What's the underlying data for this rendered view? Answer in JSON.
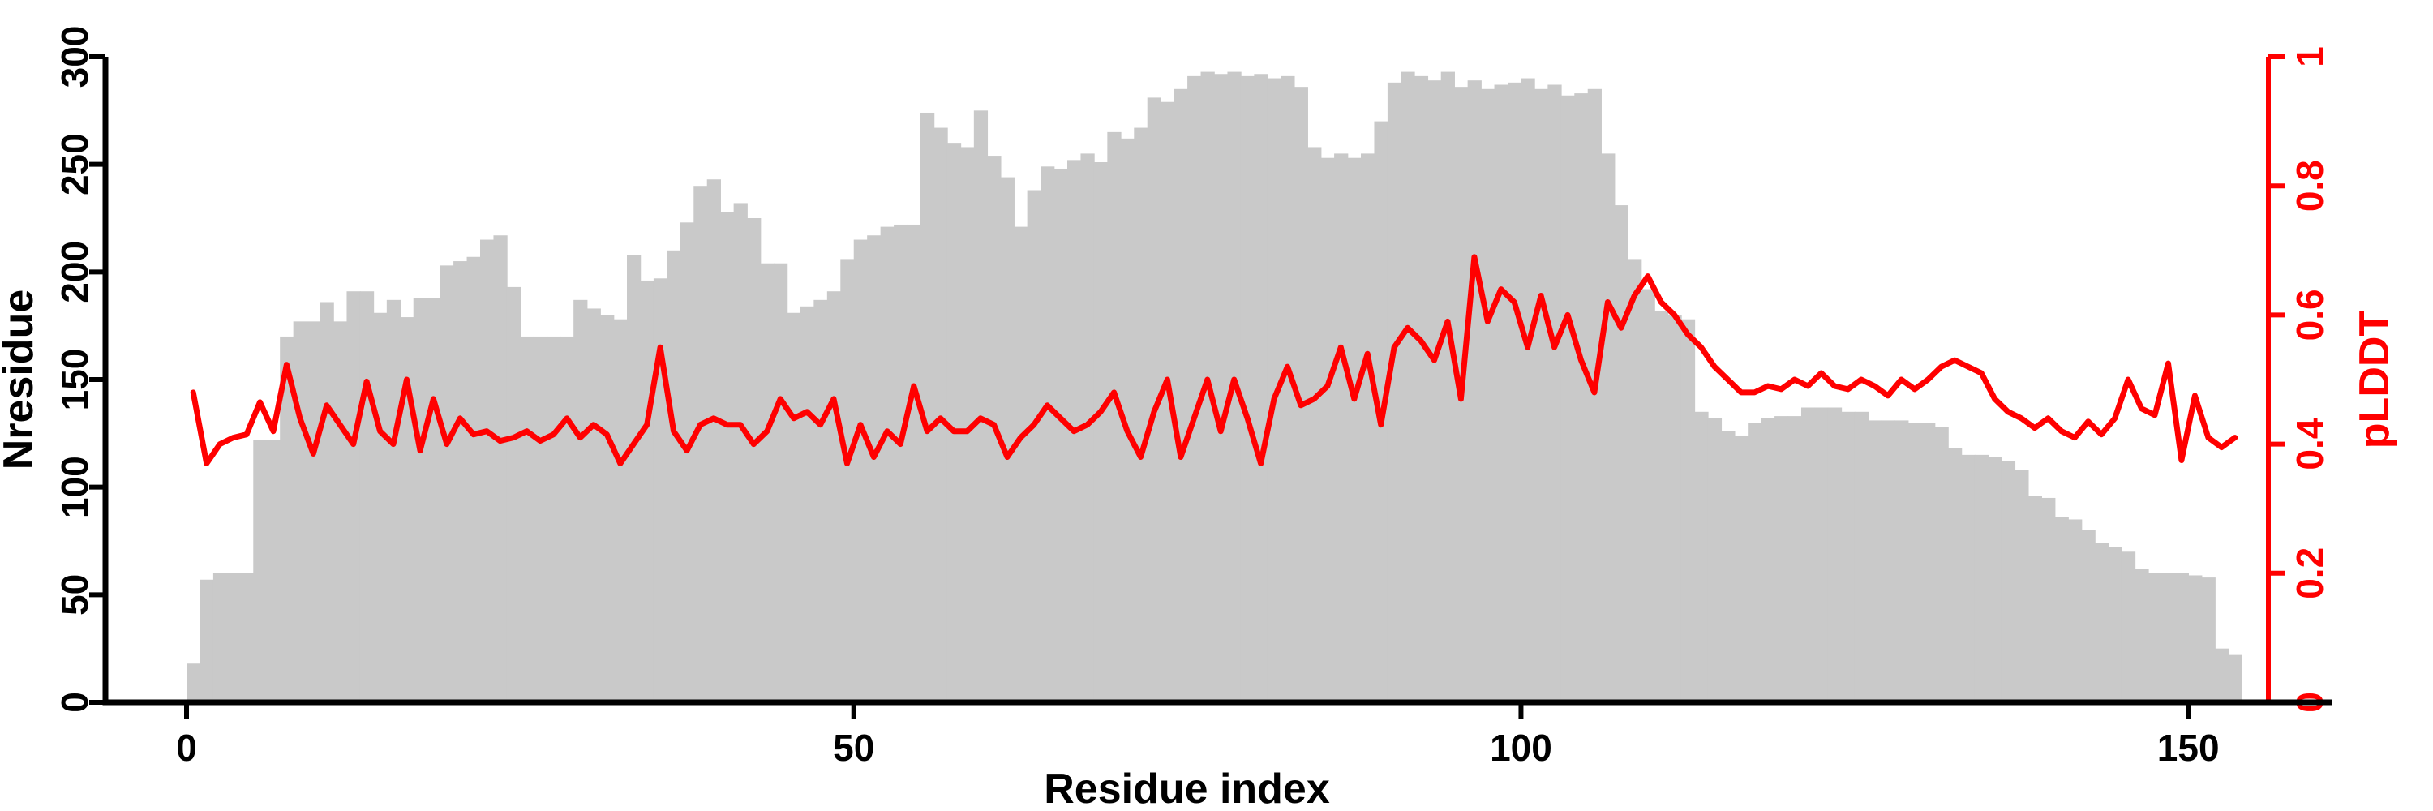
{
  "figure": {
    "background": "#ffffff",
    "colors": {
      "bars": "#c9c9c9",
      "line": "#ff0000",
      "axis": "#000000"
    }
  },
  "chart_data": {
    "type": "bar",
    "overlay": "line",
    "title": "",
    "xlabel": "Residue index",
    "grid": false,
    "legend_position": "none",
    "x_ticks": [
      0,
      50,
      100,
      150
    ],
    "x_range": [
      0,
      160
    ],
    "left_axis": {
      "label": "Nresidue",
      "ticks": [
        0,
        50,
        100,
        150,
        200,
        250,
        300
      ],
      "range": [
        0,
        300
      ],
      "color": "#000000"
    },
    "right_axis": {
      "label": "pLDDT",
      "ticks": [
        0,
        0.2,
        0.4,
        0.6,
        0.8,
        1
      ],
      "range": [
        0,
        1
      ],
      "color": "#ff0000"
    },
    "x": [
      1,
      2,
      3,
      4,
      5,
      6,
      7,
      8,
      9,
      10,
      11,
      12,
      13,
      14,
      15,
      16,
      17,
      18,
      19,
      20,
      21,
      22,
      23,
      24,
      25,
      26,
      27,
      28,
      29,
      30,
      31,
      32,
      33,
      34,
      35,
      36,
      37,
      38,
      39,
      40,
      41,
      42,
      43,
      44,
      45,
      46,
      47,
      48,
      49,
      50,
      51,
      52,
      53,
      54,
      55,
      56,
      57,
      58,
      59,
      60,
      61,
      62,
      63,
      64,
      65,
      66,
      67,
      68,
      69,
      70,
      71,
      72,
      73,
      74,
      75,
      76,
      77,
      78,
      79,
      80,
      81,
      82,
      83,
      84,
      85,
      86,
      87,
      88,
      89,
      90,
      91,
      92,
      93,
      94,
      95,
      96,
      97,
      98,
      99,
      100,
      101,
      102,
      103,
      104,
      105,
      106,
      107,
      108,
      109,
      110,
      111,
      112,
      113,
      114,
      115,
      116,
      117,
      118,
      119,
      120,
      121,
      122,
      123,
      124,
      125,
      126,
      127,
      128,
      129,
      130,
      131,
      132,
      133,
      134,
      135,
      136,
      137,
      138,
      139,
      140,
      141,
      142,
      143,
      144,
      145,
      146,
      147,
      148,
      149,
      150,
      151,
      152,
      153,
      154
    ],
    "series": [
      {
        "name": "Nresidue",
        "type": "bar",
        "axis": "left",
        "color": "#c9c9c9",
        "values": [
          18,
          57,
          60,
          60,
          60,
          122,
          122,
          170,
          177,
          177,
          186,
          177,
          191,
          191,
          181,
          187,
          179,
          188,
          188,
          203,
          205,
          207,
          215,
          217,
          193,
          170,
          170,
          170,
          170,
          187,
          183,
          180,
          178,
          208,
          196,
          197,
          210,
          223,
          240,
          243,
          228,
          232,
          225,
          204,
          204,
          181,
          184,
          187,
          191,
          206,
          215,
          217,
          221,
          222,
          222,
          274,
          267,
          260,
          258,
          275,
          254,
          244,
          221,
          238,
          249,
          248,
          252,
          255,
          251,
          265,
          262,
          267,
          281,
          279,
          285,
          291,
          293,
          292,
          293,
          291,
          292,
          290,
          291,
          286,
          258,
          253,
          255,
          253,
          255,
          270,
          288,
          293,
          291,
          289,
          293,
          286,
          289,
          285,
          287,
          288,
          290,
          285,
          287,
          282,
          283,
          285,
          255,
          231,
          206,
          192,
          182,
          180,
          178,
          135,
          132,
          126,
          124,
          130,
          132,
          133,
          133,
          137,
          137,
          137,
          135,
          135,
          131,
          131,
          131,
          130,
          130,
          128,
          118,
          115,
          115,
          114,
          112,
          108,
          96,
          95,
          86,
          85,
          80,
          74,
          72,
          70,
          62,
          60,
          60,
          60,
          59,
          58,
          25,
          22
        ]
      },
      {
        "name": "pLDDT",
        "type": "line",
        "axis": "right",
        "color": "#ff0000",
        "values": [
          0.48,
          0.37,
          0.4,
          0.41,
          0.415,
          0.465,
          0.42,
          0.523,
          0.44,
          0.385,
          0.46,
          0.43,
          0.4,
          0.497,
          0.42,
          0.4,
          0.5,
          0.39,
          0.47,
          0.4,
          0.44,
          0.415,
          0.42,
          0.405,
          0.41,
          0.42,
          0.405,
          0.415,
          0.44,
          0.41,
          0.43,
          0.415,
          0.37,
          0.4,
          0.43,
          0.55,
          0.42,
          0.39,
          0.43,
          0.44,
          0.43,
          0.43,
          0.4,
          0.42,
          0.47,
          0.44,
          0.45,
          0.43,
          0.47,
          0.37,
          0.43,
          0.38,
          0.42,
          0.4,
          0.49,
          0.42,
          0.44,
          0.42,
          0.42,
          0.44,
          0.43,
          0.38,
          0.41,
          0.43,
          0.46,
          0.44,
          0.42,
          0.43,
          0.45,
          0.48,
          0.42,
          0.38,
          0.45,
          0.5,
          0.38,
          0.44,
          0.5,
          0.42,
          0.5,
          0.44,
          0.37,
          0.47,
          0.52,
          0.46,
          0.47,
          0.49,
          0.55,
          0.47,
          0.54,
          0.43,
          0.55,
          0.58,
          0.56,
          0.53,
          0.59,
          0.47,
          0.69,
          0.59,
          0.64,
          0.62,
          0.55,
          0.63,
          0.55,
          0.6,
          0.53,
          0.48,
          0.62,
          0.58,
          0.63,
          0.66,
          0.62,
          0.6,
          0.57,
          0.55,
          0.52,
          0.5,
          0.48,
          0.48,
          0.49,
          0.485,
          0.5,
          0.49,
          0.51,
          0.49,
          0.485,
          0.5,
          0.49,
          0.475,
          0.5,
          0.485,
          0.5,
          0.52,
          0.53,
          0.52,
          0.51,
          0.47,
          0.45,
          0.44,
          0.425,
          0.44,
          0.42,
          0.41,
          0.435,
          0.415,
          0.44,
          0.5,
          0.455,
          0.445,
          0.525,
          0.375,
          0.475,
          0.41,
          0.395,
          0.41
        ]
      }
    ]
  }
}
